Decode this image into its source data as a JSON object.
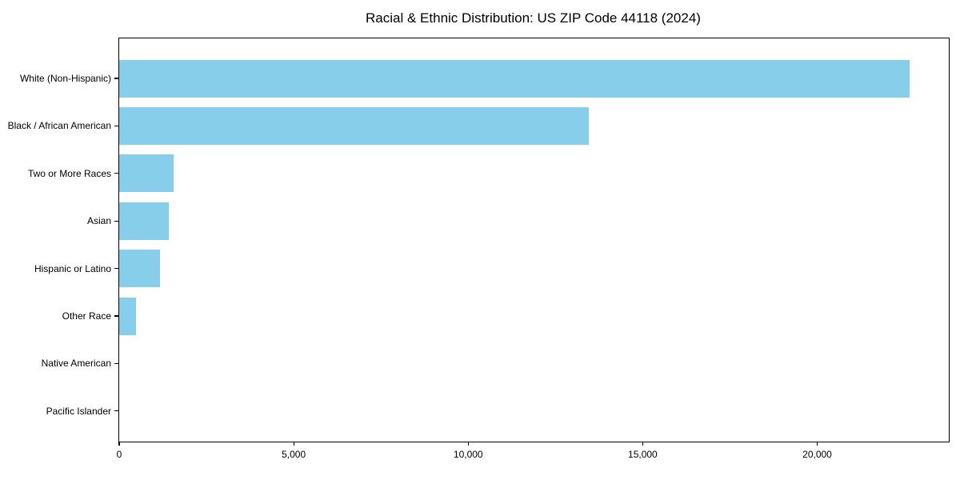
{
  "chart_data": {
    "type": "bar",
    "orientation": "horizontal",
    "title": "Racial & Ethnic Distribution: US ZIP Code 44118 (2024)",
    "categories": [
      "White (Non-Hispanic)",
      "Black / African American",
      "Two or More Races",
      "Asian",
      "Hispanic or Latino",
      "Other Race",
      "Native American",
      "Pacific Islander"
    ],
    "values": [
      22650,
      13450,
      1550,
      1420,
      1180,
      470,
      20,
      10
    ],
    "xlabel": "",
    "ylabel": "",
    "xlim": [
      0,
      23770
    ],
    "xticks": [
      0,
      5000,
      10000,
      15000,
      20000
    ],
    "xtick_labels": [
      "0",
      "5,000",
      "10,000",
      "15,000",
      "20,000"
    ],
    "bar_color": "#87CEEB",
    "axis_color": "#000000",
    "text_color": "#000000",
    "grid": false,
    "legend": "none"
  }
}
